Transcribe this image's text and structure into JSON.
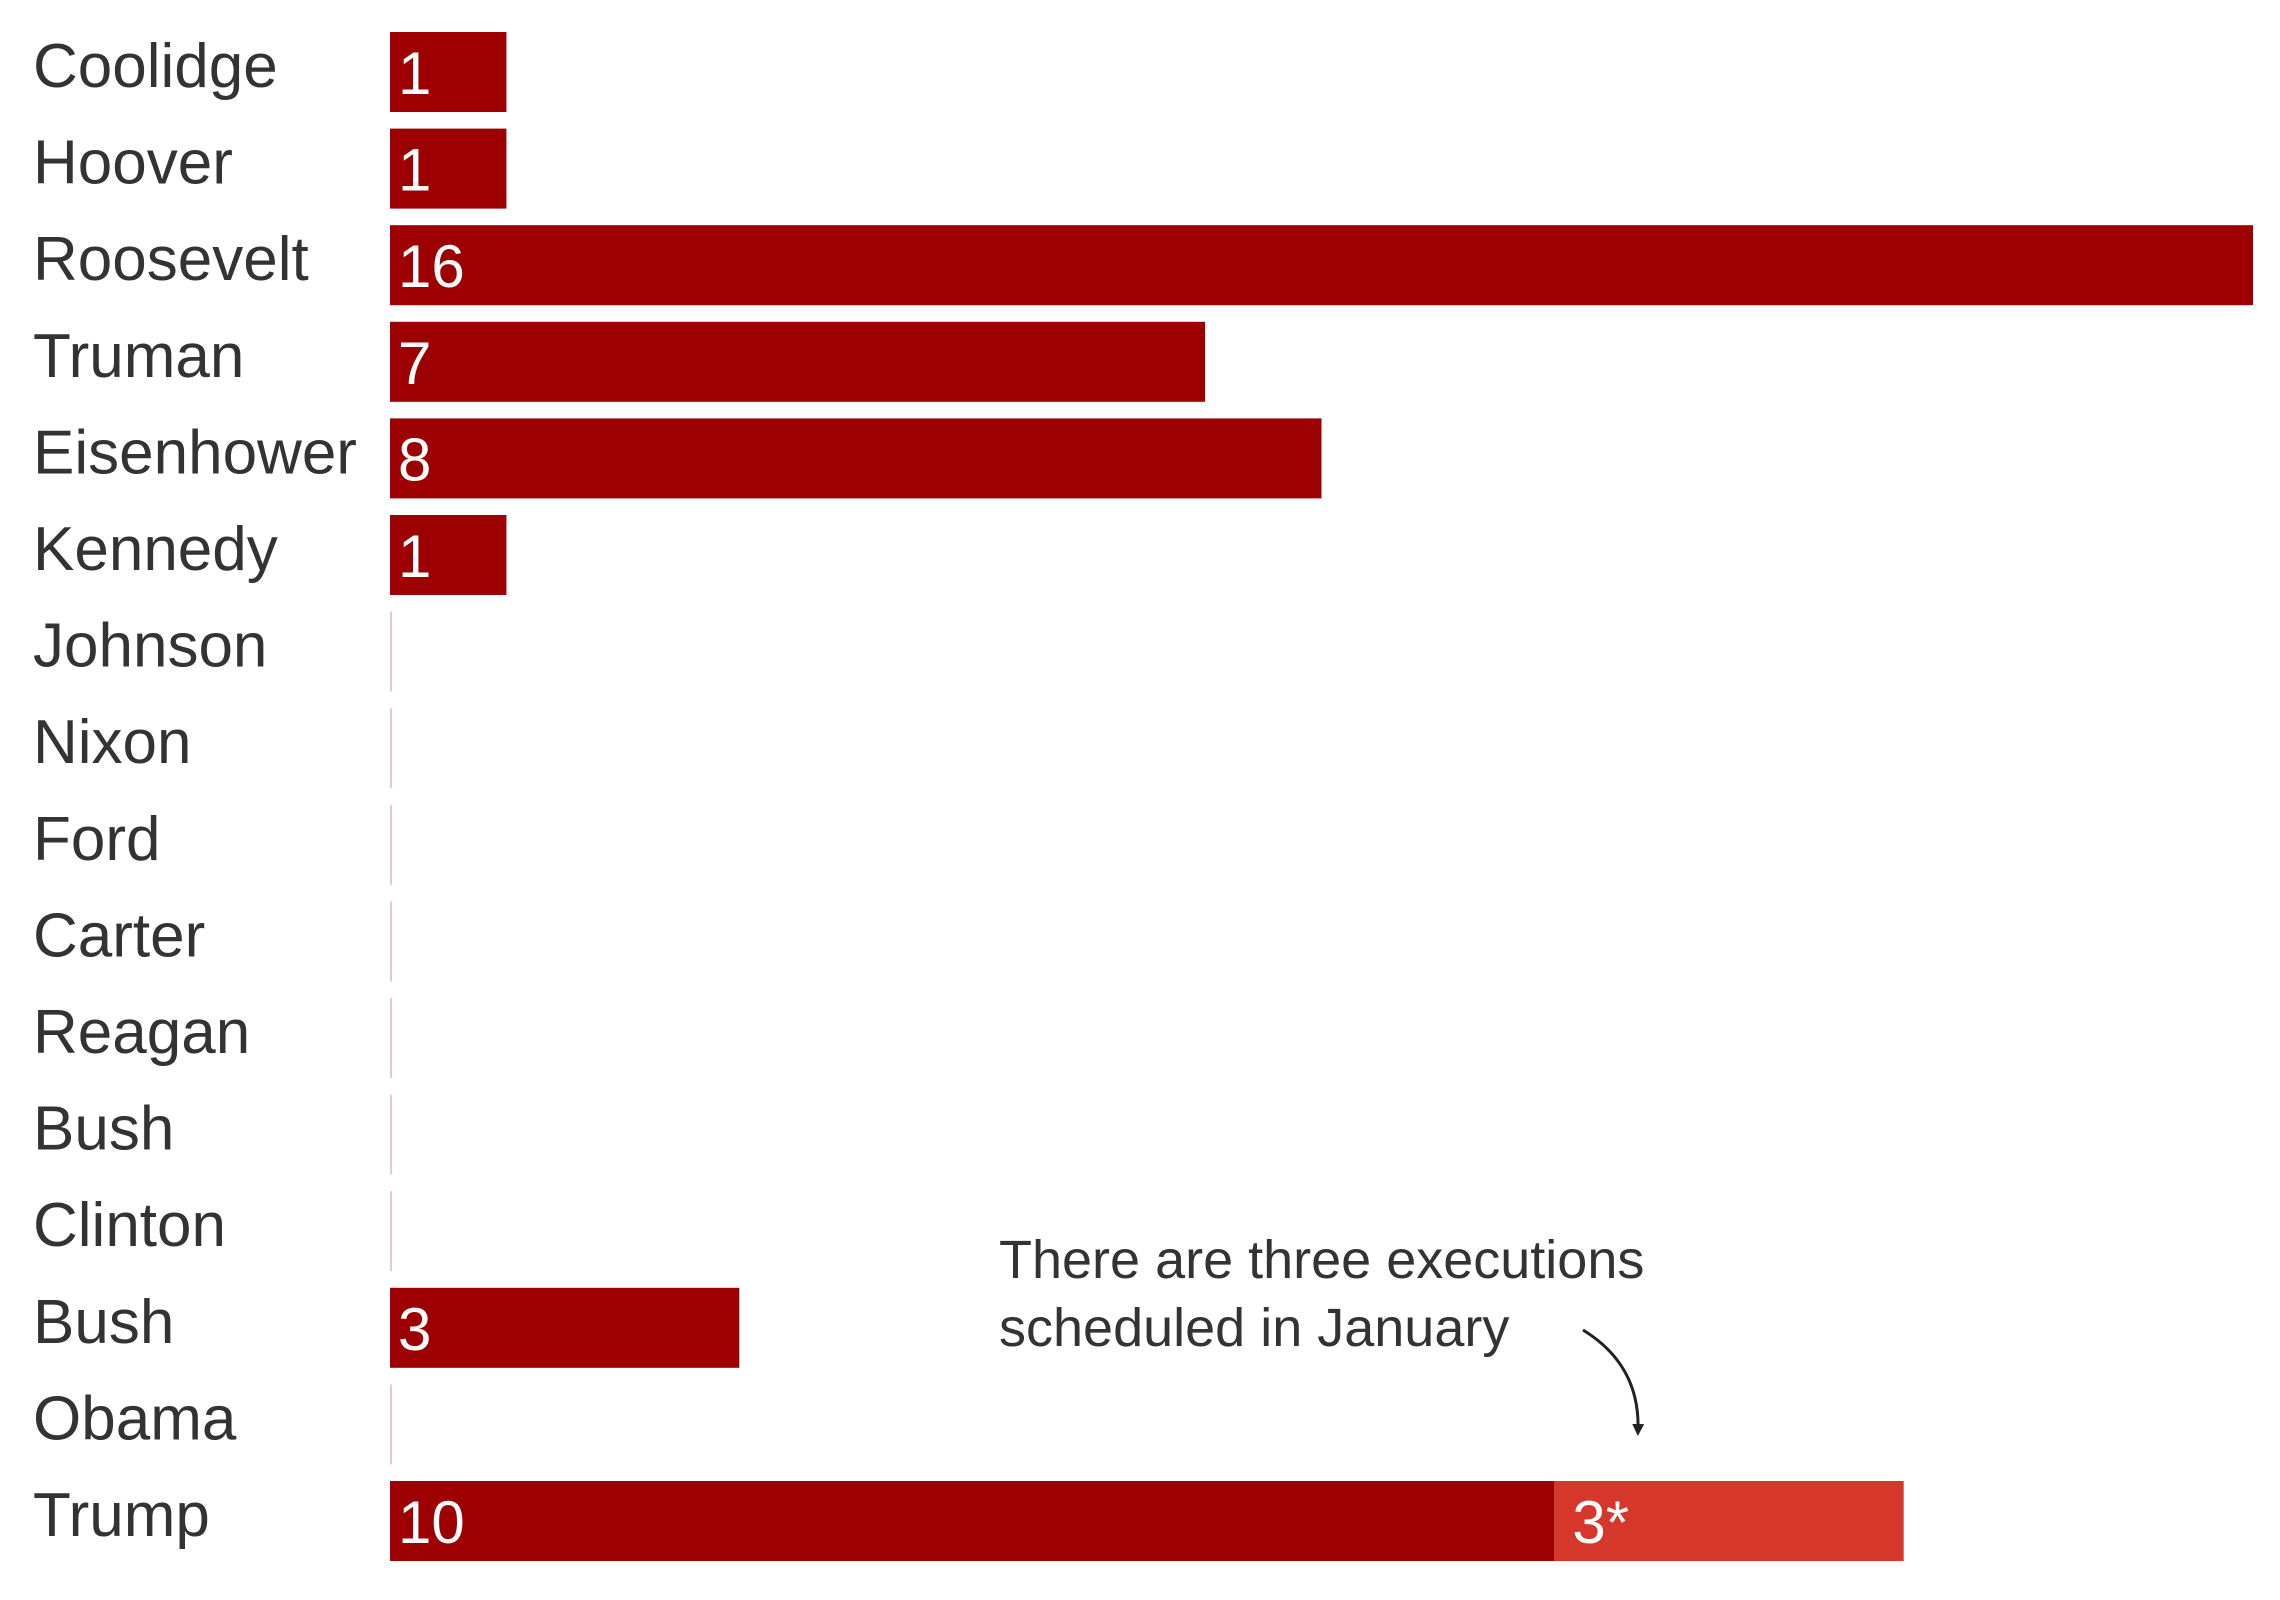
{
  "chart_data": {
    "type": "bar",
    "orientation": "horizontal",
    "stacked": true,
    "categories": [
      "Coolidge",
      "Hoover",
      "Roosevelt",
      "Truman",
      "Eisenhower",
      "Kennedy",
      "Johnson",
      "Nixon",
      "Ford",
      "Carter",
      "Reagan",
      "Bush",
      "Clinton",
      "Bush",
      "Obama",
      "Trump"
    ],
    "series": [
      {
        "color": "#9c0000",
        "values": [
          1,
          1,
          16,
          7,
          8,
          1,
          0,
          0,
          0,
          0,
          0,
          0,
          0,
          3,
          0,
          10
        ],
        "labels": [
          "1",
          "1",
          "16",
          "7",
          "8",
          "1",
          "",
          "",
          "",
          "",
          "",
          "",
          "",
          "3",
          "",
          "10"
        ]
      },
      {
        "color": "#d5382b",
        "values": [
          0,
          0,
          0,
          0,
          0,
          0,
          0,
          0,
          0,
          0,
          0,
          0,
          0,
          0,
          0,
          3
        ],
        "labels": [
          "",
          "",
          "",
          "",
          "",
          "",
          "",
          "",
          "",
          "",
          "",
          "",
          "",
          "",
          "",
          "3*"
        ]
      }
    ],
    "xlim": [
      0,
      16
    ],
    "grid": false,
    "annotation": {
      "lines": [
        "There are three executions",
        "scheduled in January"
      ],
      "target_category": "Trump",
      "target_series": 1
    },
    "zero_marker_color": "#e8c7d2",
    "label_color": "#333333"
  }
}
